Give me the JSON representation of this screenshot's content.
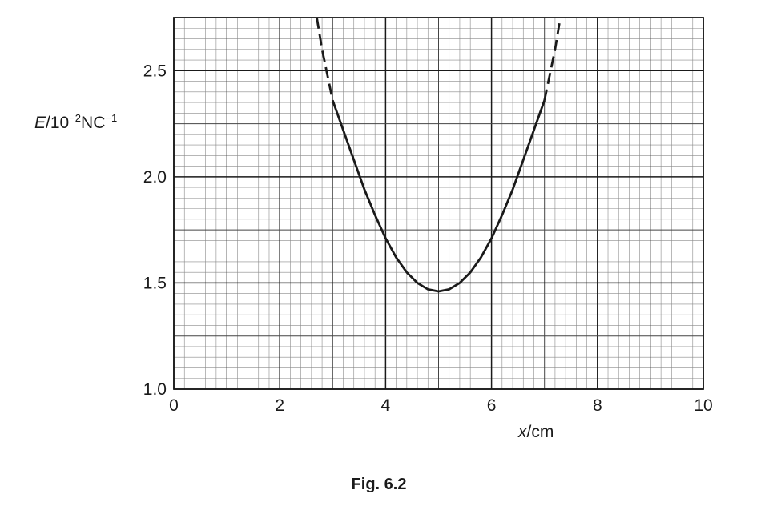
{
  "chart_data": {
    "type": "line",
    "title": "",
    "caption": "Fig. 6.2",
    "xlabel": {
      "symbol": "x",
      "unit": "cm"
    },
    "ylabel": {
      "symbol": "E",
      "unit_base": "10",
      "unit_exp": "−2",
      "unit_after": "NC",
      "unit_after_exp": "−1"
    },
    "xlim": [
      0,
      10
    ],
    "ylim": [
      1.0,
      2.75
    ],
    "x_ticks": [
      "0",
      "2",
      "4",
      "6",
      "8",
      "10"
    ],
    "y_ticks": [
      "1.0",
      "1.5",
      "2.0",
      "2.5"
    ],
    "grid": true,
    "legend": "none",
    "series": [
      {
        "style": "solid",
        "x": [
          3.0,
          3.2,
          3.4,
          3.6,
          3.8,
          4.0,
          4.2,
          4.4,
          4.6,
          4.8,
          5.0,
          5.2,
          5.4,
          5.6,
          5.8,
          6.0,
          6.2,
          6.4,
          6.6,
          6.8,
          7.0
        ],
        "y": [
          2.36,
          2.22,
          2.08,
          1.94,
          1.82,
          1.71,
          1.62,
          1.55,
          1.5,
          1.47,
          1.46,
          1.47,
          1.5,
          1.55,
          1.62,
          1.71,
          1.82,
          1.94,
          2.08,
          2.22,
          2.36
        ]
      },
      {
        "style": "dashed",
        "x": [
          2.7,
          2.8,
          2.9,
          3.0
        ],
        "y": [
          2.75,
          2.6,
          2.48,
          2.36
        ]
      },
      {
        "style": "dashed",
        "x": [
          7.0,
          7.1,
          7.2,
          7.3
        ],
        "y": [
          2.36,
          2.48,
          2.6,
          2.75
        ]
      }
    ]
  }
}
